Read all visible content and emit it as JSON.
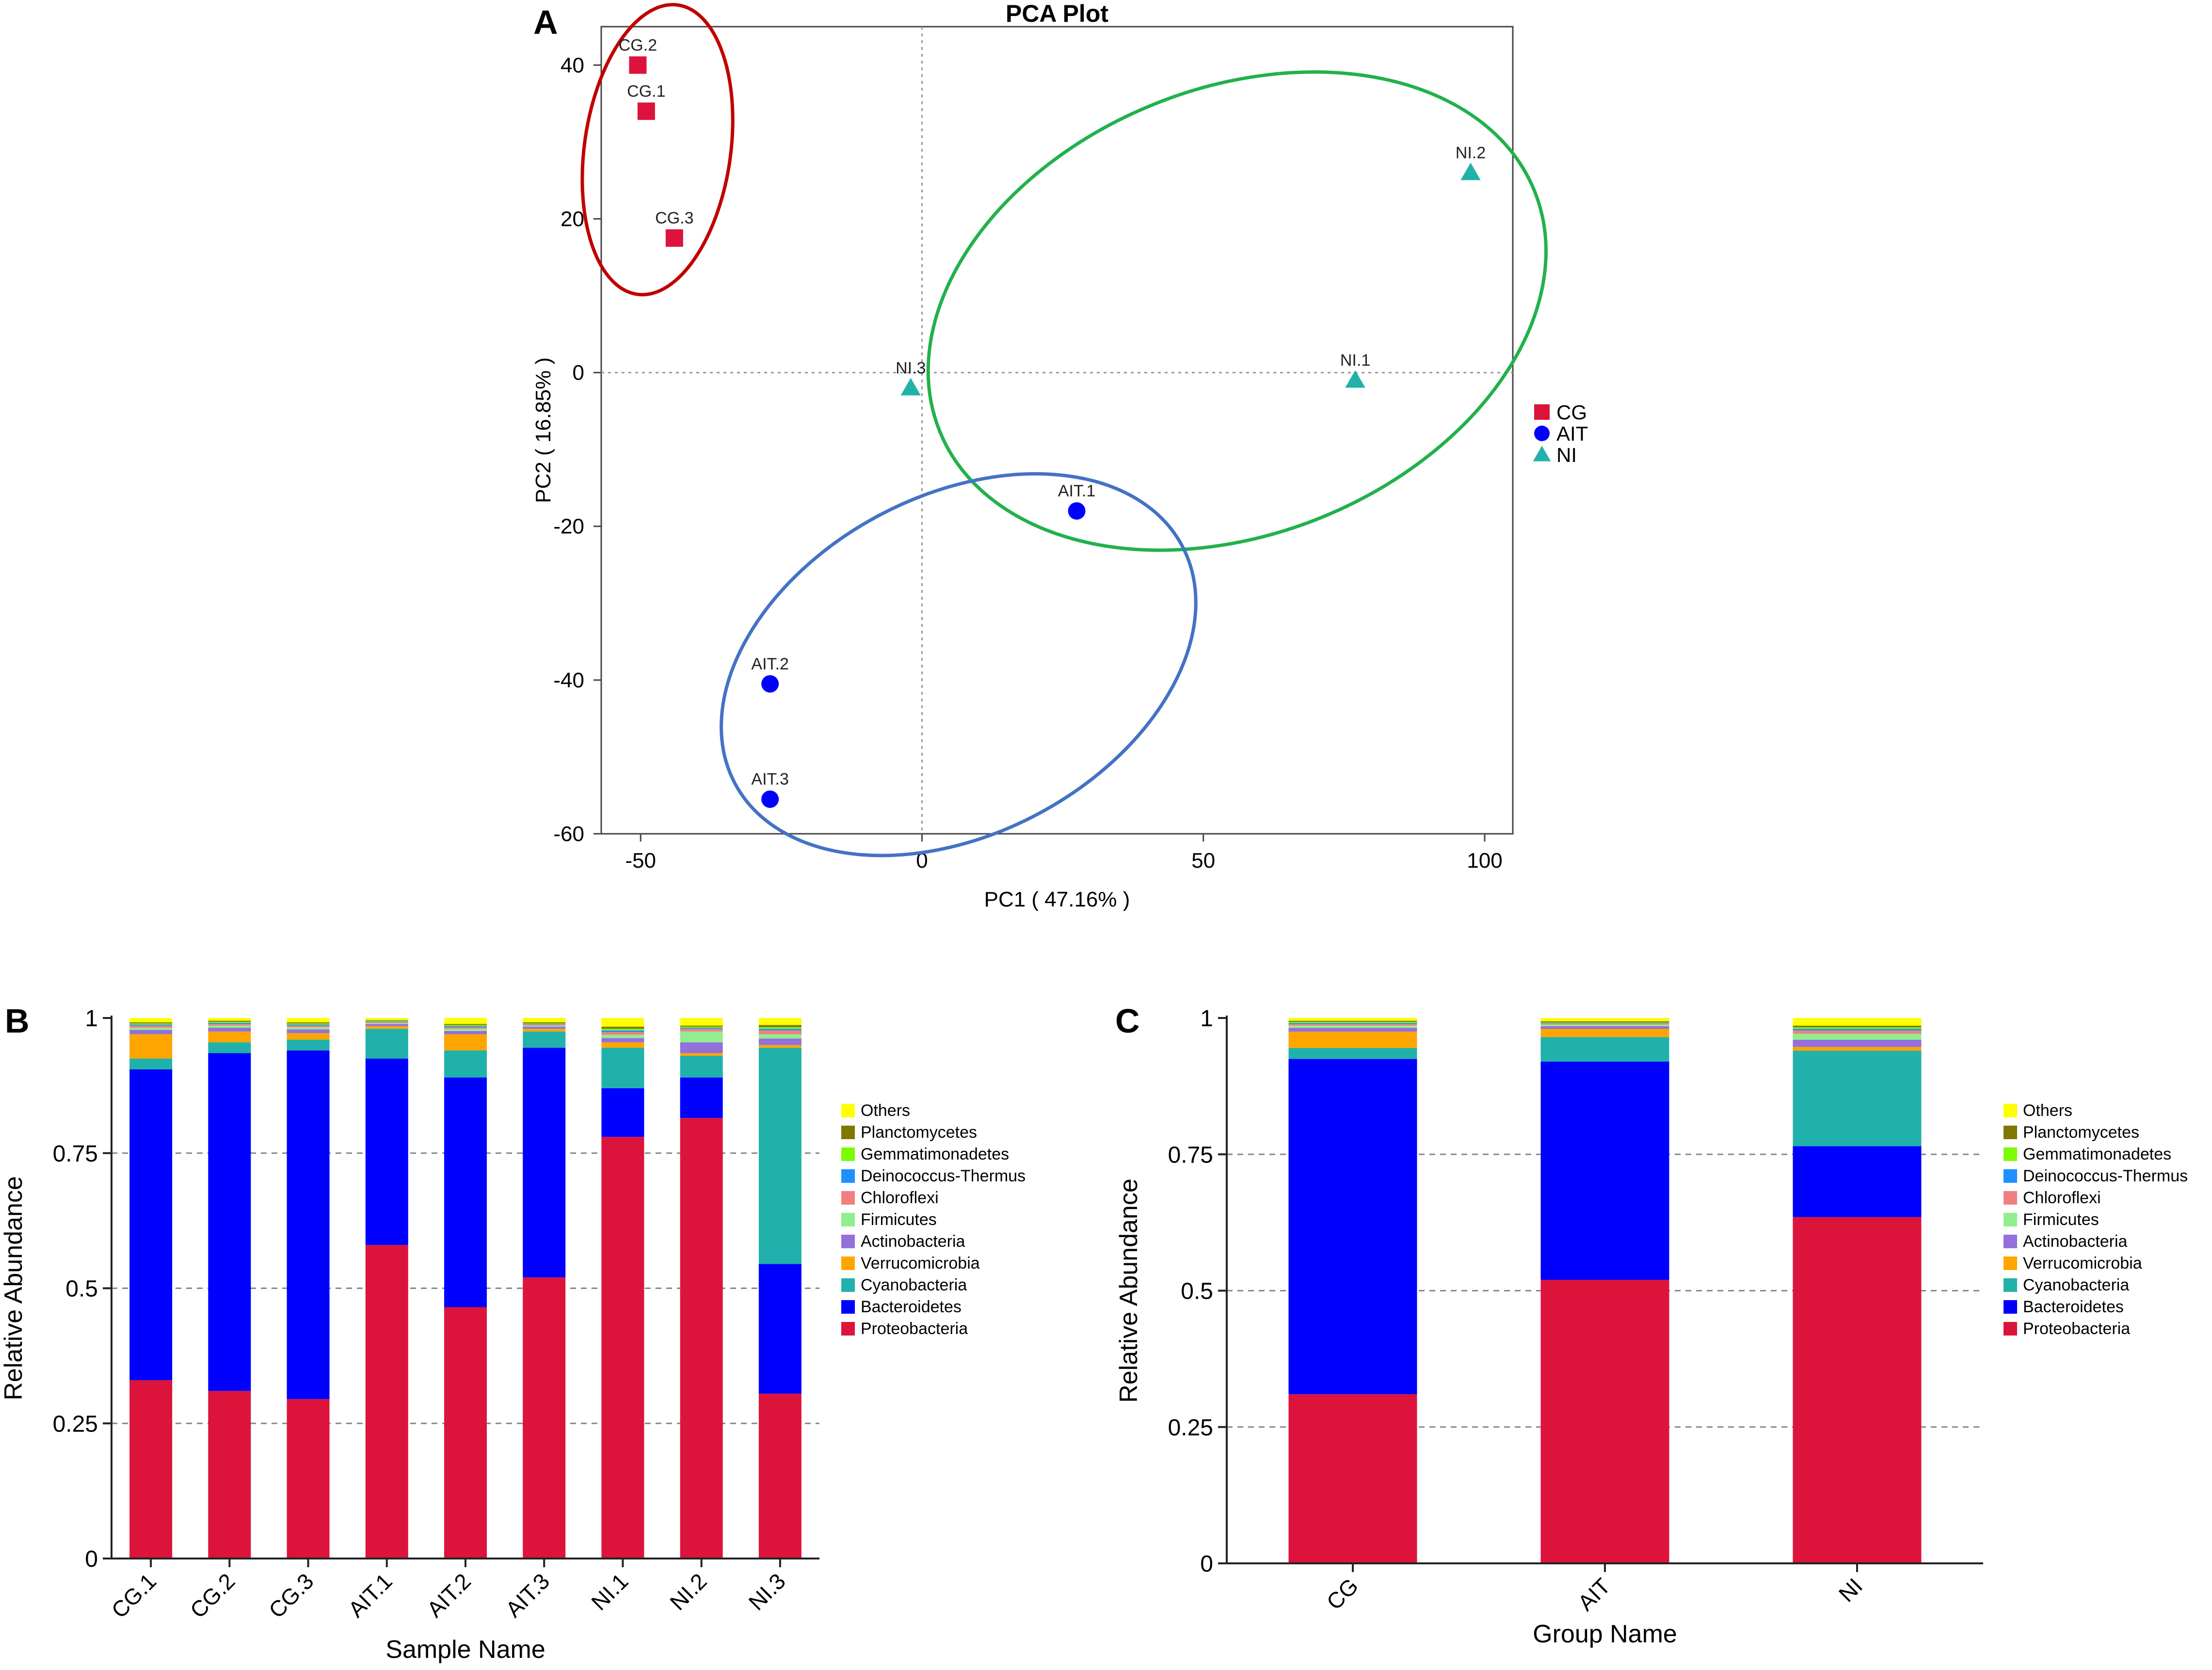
{
  "colors": {
    "Others": "#ffff00",
    "Planctomycetes": "#807800",
    "Gemmatimonadetes": "#7cfc00",
    "Deinococcus-Thermus": "#1e90ff",
    "Chloroflexi": "#f08080",
    "Firmicutes": "#90ee90",
    "Actinobacteria": "#9370db",
    "Verrucomicrobia": "#ffa500",
    "Cyanobacteria": "#20b2aa",
    "Bacteroidetes": "#0000ff",
    "Proteobacteria": "#dc143c",
    "CG": "#dc143c",
    "AIT": "#0000ff",
    "NI": "#20b2aa",
    "ellipse_CG": "#c00000",
    "ellipse_AIT": "#4472c4",
    "ellipse_NI": "#22b14c"
  },
  "chart_data": [
    {
      "panel": "A",
      "type": "scatter",
      "title": "PCA Plot",
      "xlabel": "PC1 ( 47.16% )",
      "ylabel": "PC2 ( 16.85% )",
      "xlim": [
        -57,
        105
      ],
      "ylim": [
        -60,
        45
      ],
      "xticks": [
        -50,
        0,
        50,
        100
      ],
      "yticks": [
        -60,
        -40,
        -20,
        0,
        20,
        40
      ],
      "legend": [
        {
          "label": "CG",
          "shape": "square"
        },
        {
          "label": "AIT",
          "shape": "circle"
        },
        {
          "label": "NI",
          "shape": "triangle"
        }
      ],
      "points": [
        {
          "label": "CG.1",
          "group": "CG",
          "x": -49,
          "y": 34
        },
        {
          "label": "CG.2",
          "group": "CG",
          "x": -50.5,
          "y": 40
        },
        {
          "label": "CG.3",
          "group": "CG",
          "x": -44,
          "y": 17.5
        },
        {
          "label": "AIT.1",
          "group": "AIT",
          "x": 27.5,
          "y": -18
        },
        {
          "label": "AIT.2",
          "group": "AIT",
          "x": -27,
          "y": -40.5
        },
        {
          "label": "AIT.3",
          "group": "AIT",
          "x": -27,
          "y": -55.5
        },
        {
          "label": "NI.1",
          "group": "NI",
          "x": 77,
          "y": -1
        },
        {
          "label": "NI.2",
          "group": "NI",
          "x": 97.5,
          "y": 26
        },
        {
          "label": "NI.3",
          "group": "NI",
          "x": -2,
          "y": -2
        }
      ],
      "ellipses": [
        {
          "group": "CG",
          "cx": -47,
          "cy": 29,
          "rx": 13,
          "ry": 19,
          "angle": -8
        },
        {
          "group": "NI",
          "cx": 56,
          "cy": 8,
          "rx": 57,
          "ry": 29,
          "angle": 22
        },
        {
          "group": "AIT",
          "cx": 6.5,
          "cy": -38,
          "rx": 45,
          "ry": 22,
          "angle": 28
        }
      ]
    },
    {
      "panel": "B",
      "type": "bar",
      "stacked": true,
      "xlabel": "Sample Name",
      "ylabel": "Relative Abundance",
      "ylim": [
        0,
        1
      ],
      "yticks": [
        "0",
        "0.25",
        "0.5",
        "0.75",
        "1"
      ],
      "categories": [
        "CG.1",
        "CG.2",
        "CG.3",
        "AIT.1",
        "AIT.2",
        "AIT.3",
        "NI.1",
        "NI.2",
        "NI.3"
      ],
      "series": [
        {
          "name": "Proteobacteria",
          "values": [
            0.33,
            0.31,
            0.295,
            0.58,
            0.465,
            0.52,
            0.78,
            0.815,
            0.305
          ]
        },
        {
          "name": "Bacteroidetes",
          "values": [
            0.575,
            0.625,
            0.645,
            0.345,
            0.425,
            0.425,
            0.09,
            0.075,
            0.24
          ]
        },
        {
          "name": "Cyanobacteria",
          "values": [
            0.02,
            0.02,
            0.02,
            0.055,
            0.05,
            0.03,
            0.075,
            0.04,
            0.4
          ]
        },
        {
          "name": "Verrucomicrobia",
          "values": [
            0.045,
            0.02,
            0.012,
            0.005,
            0.03,
            0.005,
            0.01,
            0.005,
            0.005
          ]
        },
        {
          "name": "Actinobacteria",
          "values": [
            0.008,
            0.007,
            0.007,
            0.004,
            0.006,
            0.004,
            0.008,
            0.02,
            0.012
          ]
        },
        {
          "name": "Firmicutes",
          "values": [
            0.004,
            0.004,
            0.004,
            0.002,
            0.004,
            0.002,
            0.006,
            0.02,
            0.008
          ]
        },
        {
          "name": "Chloroflexi",
          "values": [
            0.004,
            0.003,
            0.003,
            0.002,
            0.003,
            0.002,
            0.005,
            0.005,
            0.007
          ]
        },
        {
          "name": "Deinococcus-Thermus",
          "values": [
            0.002,
            0.002,
            0.002,
            0.001,
            0.002,
            0.001,
            0.003,
            0.002,
            0.003
          ]
        },
        {
          "name": "Gemmatimonadetes",
          "values": [
            0.002,
            0.002,
            0.002,
            0.001,
            0.002,
            0.001,
            0.003,
            0.002,
            0.003
          ]
        },
        {
          "name": "Planctomycetes",
          "values": [
            0.002,
            0.002,
            0.002,
            0.001,
            0.002,
            0.002,
            0.004,
            0.002,
            0.004
          ]
        },
        {
          "name": "Others",
          "values": [
            0.008,
            0.005,
            0.008,
            0.004,
            0.011,
            0.008,
            0.016,
            0.014,
            0.013
          ]
        }
      ],
      "legend": [
        "Others",
        "Planctomycetes",
        "Gemmatimonadetes",
        "Deinococcus-Thermus",
        "Chloroflexi",
        "Firmicutes",
        "Actinobacteria",
        "Verrucomicrobia",
        "Cyanobacteria",
        "Bacteroidetes",
        "Proteobacteria"
      ]
    },
    {
      "panel": "C",
      "type": "bar",
      "stacked": true,
      "xlabel": "Group Name",
      "ylabel": "Relative Abundance",
      "ylim": [
        0,
        1
      ],
      "yticks": [
        "0",
        "0.25",
        "0.5",
        "0.75",
        "1"
      ],
      "categories": [
        "CG",
        "AIT",
        "NI"
      ],
      "series": [
        {
          "name": "Proteobacteria",
          "values": [
            0.31,
            0.52,
            0.635
          ]
        },
        {
          "name": "Bacteroidetes",
          "values": [
            0.615,
            0.4,
            0.13
          ]
        },
        {
          "name": "Cyanobacteria",
          "values": [
            0.02,
            0.045,
            0.175
          ]
        },
        {
          "name": "Verrucomicrobia",
          "values": [
            0.03,
            0.015,
            0.007
          ]
        },
        {
          "name": "Actinobacteria",
          "values": [
            0.007,
            0.005,
            0.013
          ]
        },
        {
          "name": "Firmicutes",
          "values": [
            0.004,
            0.003,
            0.011
          ]
        },
        {
          "name": "Chloroflexi",
          "values": [
            0.003,
            0.002,
            0.006
          ]
        },
        {
          "name": "Deinococcus-Thermus",
          "values": [
            0.002,
            0.001,
            0.003
          ]
        },
        {
          "name": "Gemmatimonadetes",
          "values": [
            0.002,
            0.001,
            0.003
          ]
        },
        {
          "name": "Planctomycetes",
          "values": [
            0.002,
            0.002,
            0.003
          ]
        },
        {
          "name": "Others",
          "values": [
            0.005,
            0.006,
            0.014
          ]
        }
      ],
      "legend": [
        "Others",
        "Planctomycetes",
        "Gemmatimonadetes",
        "Deinococcus-Thermus",
        "Chloroflexi",
        "Firmicutes",
        "Actinobacteria",
        "Verrucomicrobia",
        "Cyanobacteria",
        "Bacteroidetes",
        "Proteobacteria"
      ]
    }
  ],
  "panels": {
    "a": {
      "letter": "A"
    },
    "b": {
      "letter": "B"
    },
    "c": {
      "letter": "C"
    }
  }
}
